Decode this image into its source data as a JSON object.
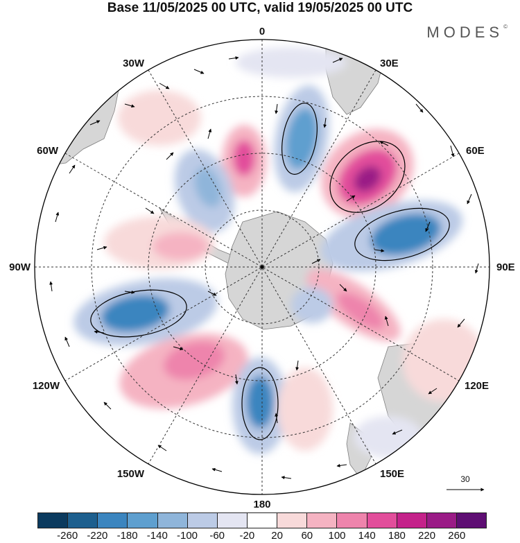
{
  "title": "Base 11/05/2025 00 UTC, valid 19/05/2025 00 UTC",
  "brand": "MODES",
  "brand_mark": "©",
  "longitude_labels": [
    "0",
    "30E",
    "60E",
    "90E",
    "120E",
    "150E",
    "180",
    "150W",
    "120W",
    "90W",
    "60W",
    "30W"
  ],
  "reference_vector": {
    "value": "30"
  },
  "colorbar": {
    "colors": [
      "#0b3a5e",
      "#1d5f8e",
      "#3b85bf",
      "#5e9fcf",
      "#8fb5da",
      "#bccbe6",
      "#e4e5f2",
      "#ffffff",
      "#f8dada",
      "#f5b3c2",
      "#ee84ac",
      "#e24e9b",
      "#c4228a",
      "#9a1b86",
      "#5e0e73"
    ],
    "tick_labels": [
      "-260",
      "-220",
      "-180",
      "-140",
      "-100",
      "-60",
      "-20",
      "20",
      "60",
      "100",
      "140",
      "180",
      "220",
      "260"
    ]
  },
  "map_colors": {
    "land": "#d6d6d6",
    "coast": "#7d7d7d",
    "grid": "#333333",
    "arrow": "#000000"
  }
}
